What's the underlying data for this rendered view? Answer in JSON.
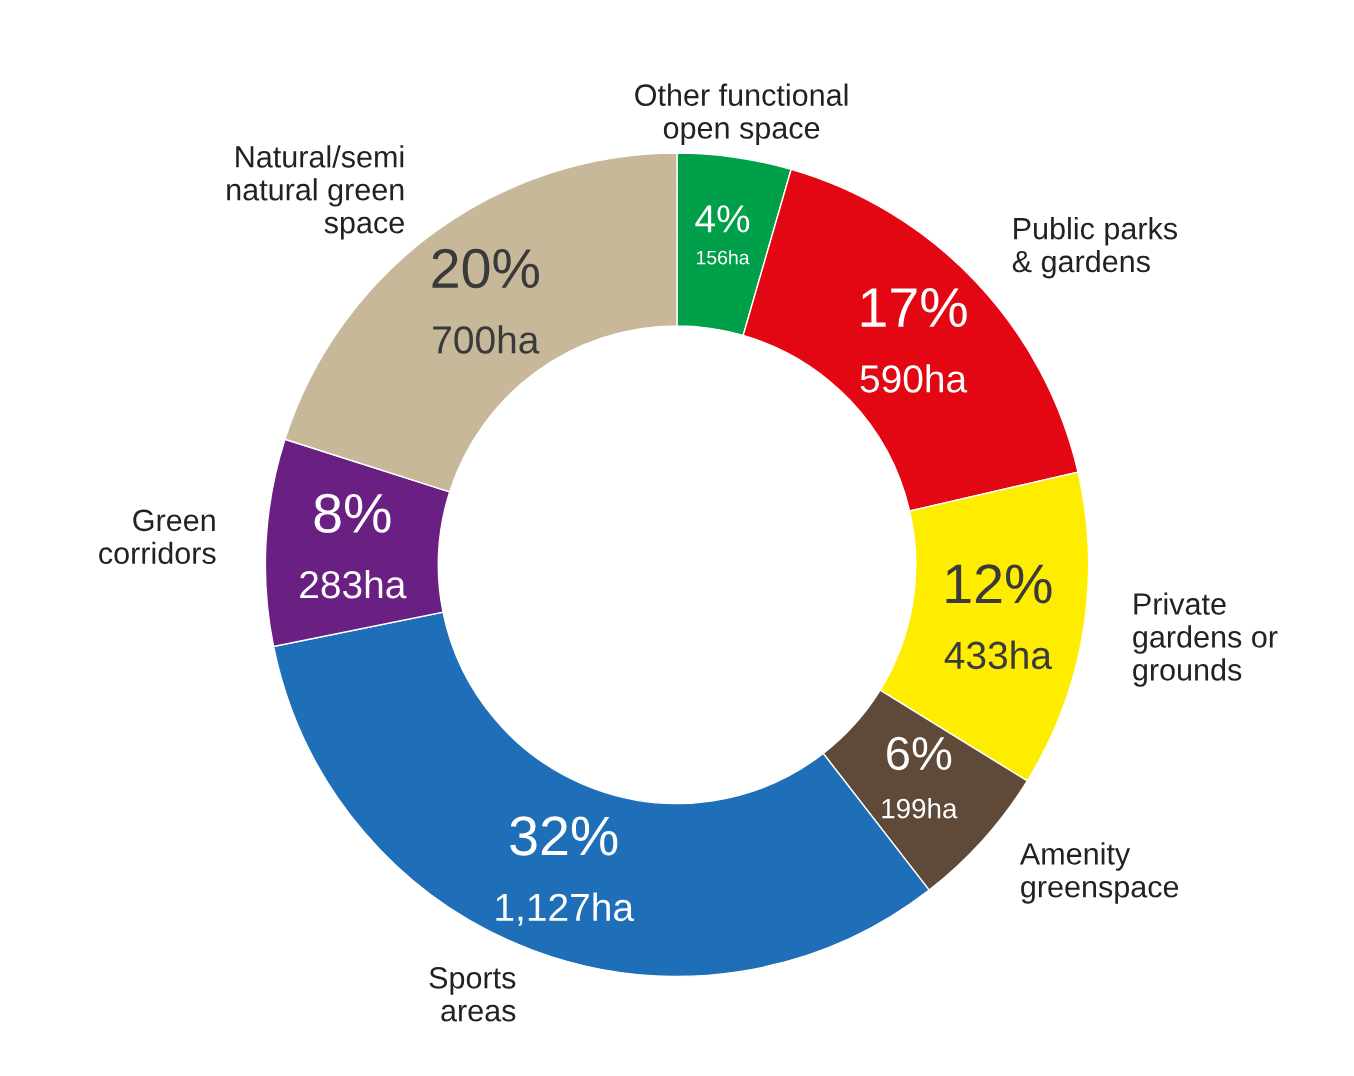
{
  "chart_data": {
    "type": "donut",
    "categories": [
      "Other functional\nopen space",
      "Public parks\n& gardens",
      "Private\ngardens or\ngrounds",
      "Amenity\ngreenspace",
      "Sports\nareas",
      "Green\ncorridors",
      "Natural/semi\nnatural green\nspace"
    ],
    "values": [
      156,
      590,
      433,
      199,
      1127,
      283,
      700
    ],
    "value_labels": [
      "4%\n156ha",
      "17%\n590ha",
      "12%\n433ha",
      "6%\n199ha",
      "32%\n1,127ha",
      "8%\n283ha",
      "20%\n700ha"
    ],
    "colors": [
      "#00a04a",
      "#e30613",
      "#ffed00",
      "#5f4a3a",
      "#1f6fb8",
      "#6a1f82",
      "#c8b89a"
    ],
    "legend": false
  }
}
